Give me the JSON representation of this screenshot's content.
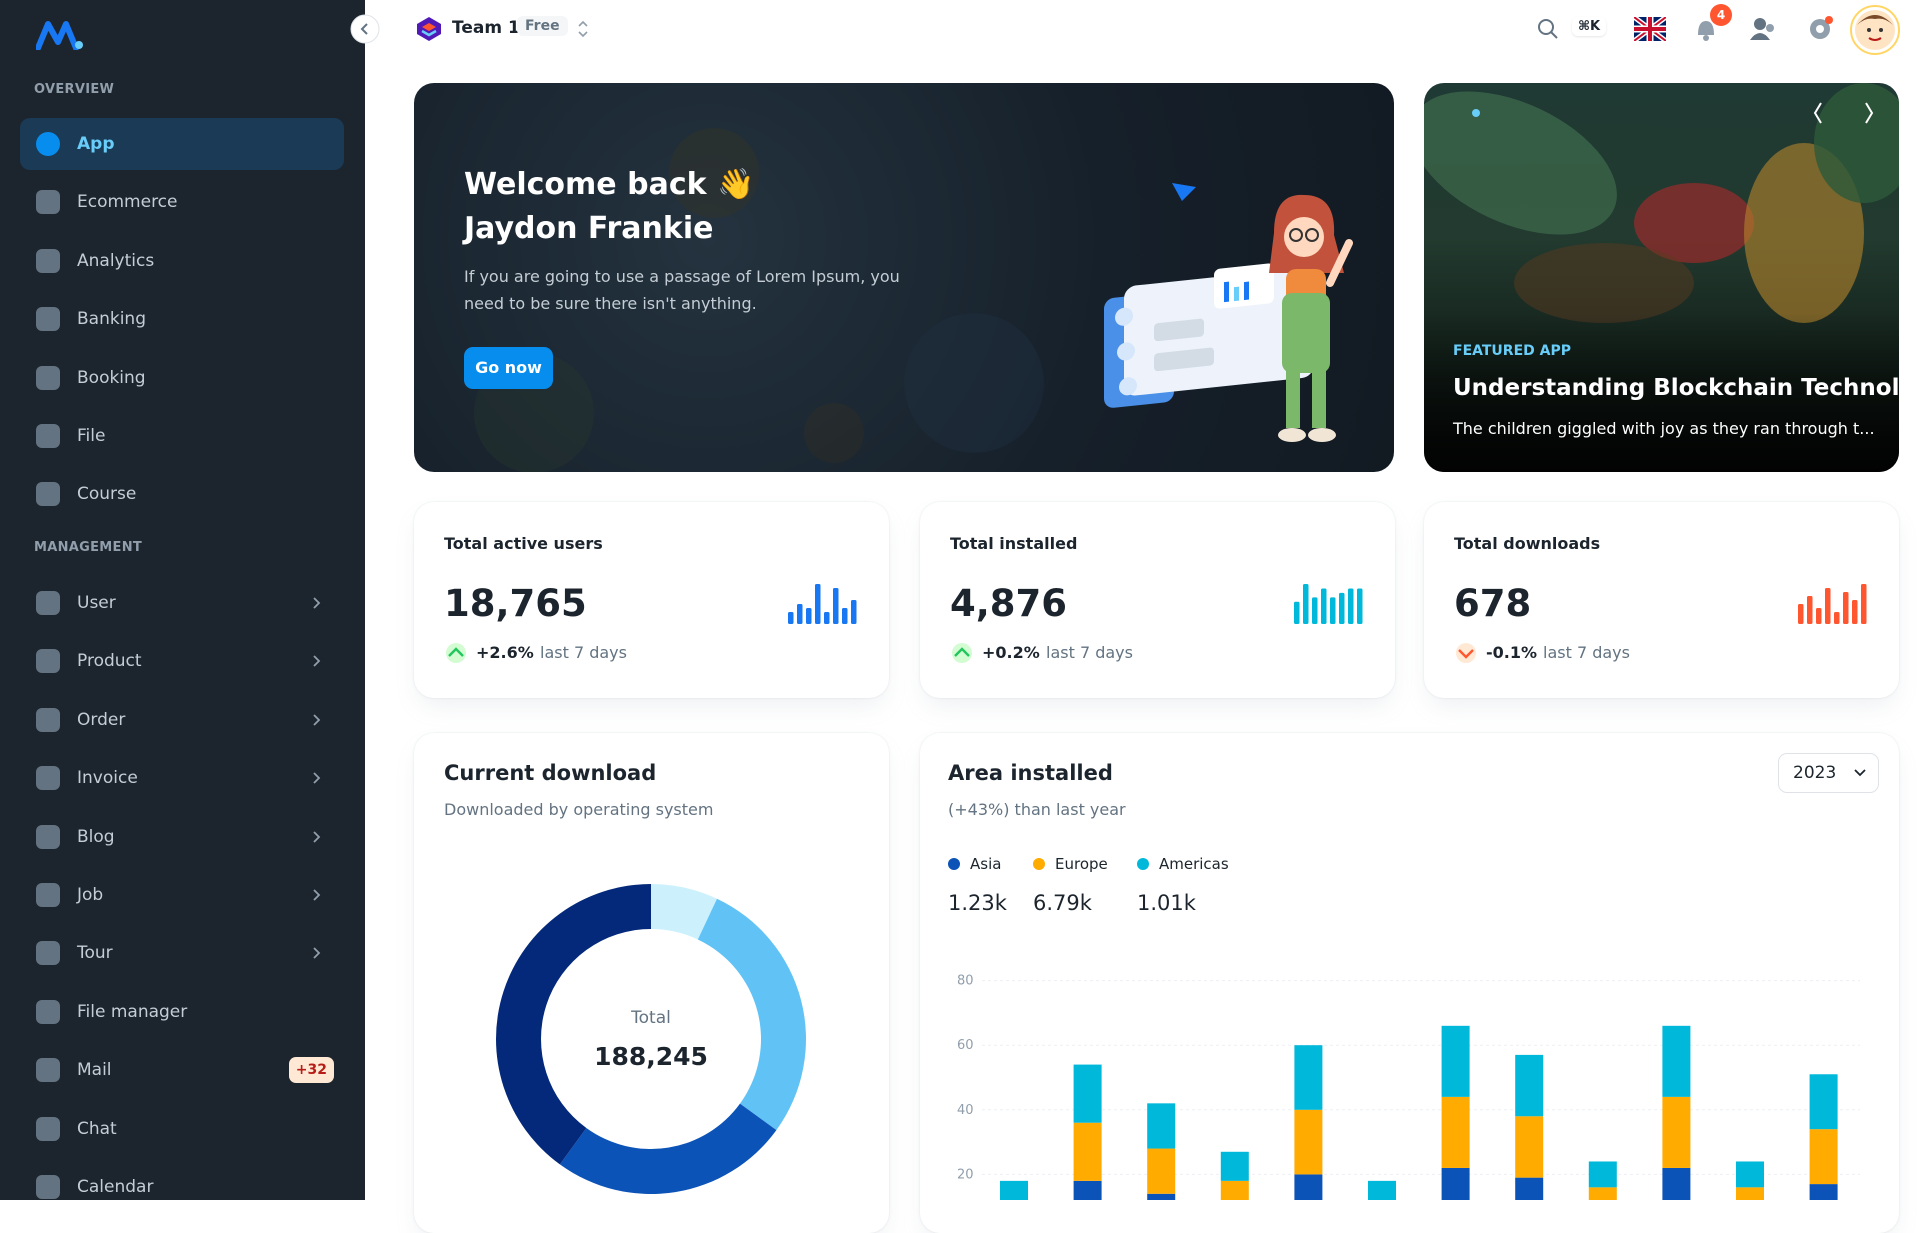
{
  "sidebar": {
    "sections": [
      {
        "title": "OVERVIEW",
        "items": [
          {
            "label": "App"
          },
          {
            "label": "Ecommerce"
          },
          {
            "label": "Analytics"
          },
          {
            "label": "Banking"
          },
          {
            "label": "Booking"
          },
          {
            "label": "File"
          },
          {
            "label": "Course"
          }
        ]
      },
      {
        "title": "MANAGEMENT",
        "items": [
          {
            "label": "User",
            "submenu": true
          },
          {
            "label": "Product",
            "submenu": true
          },
          {
            "label": "Order",
            "submenu": true
          },
          {
            "label": "Invoice",
            "submenu": true
          },
          {
            "label": "Blog",
            "submenu": true
          },
          {
            "label": "Job",
            "submenu": true
          },
          {
            "label": "Tour",
            "submenu": true
          },
          {
            "label": "File manager"
          },
          {
            "label": "Mail",
            "badge": "+32"
          },
          {
            "label": "Chat"
          },
          {
            "label": "Calendar"
          }
        ]
      }
    ]
  },
  "header": {
    "team": "Team 1",
    "plan": "Free",
    "shortcut": "⌘K",
    "notifications": 4
  },
  "welcome": {
    "title": "Welcome back 👋",
    "name": "Jaydon Frankie",
    "text": "If you are going to use a passage of Lorem Ipsum, you need to be sure there isn't anything.",
    "button": "Go now"
  },
  "featured": {
    "tag": "FEATURED APP",
    "title": "Understanding Blockchain Technolo...",
    "text": "The children giggled with joy as they ran through t..."
  },
  "stats": [
    {
      "title": "Total active users",
      "value": "18,765",
      "change": "+2.6%",
      "period": "last 7 days",
      "color": "#1877f2",
      "bars": [
        3,
        5,
        4,
        10,
        3,
        9,
        4,
        6
      ]
    },
    {
      "title": "Total installed",
      "value": "4,876",
      "change": "+0.2%",
      "period": "last 7 days",
      "color": "#00b8d9",
      "bars": [
        5,
        9,
        6,
        8,
        6,
        7,
        8,
        8
      ]
    },
    {
      "title": "Total downloads",
      "value": "678",
      "change": "-0.1%",
      "period": "last 7 days",
      "color": "#ff5630",
      "bars": [
        5,
        7,
        4,
        9,
        3,
        8,
        6,
        10
      ]
    }
  ],
  "current_download": {
    "title": "Current download",
    "subtitle": "Downloaded by operating system",
    "total_label": "Total",
    "total": "188,245",
    "chart": {
      "type": "donut",
      "values": [
        7,
        28,
        25,
        40
      ],
      "colors": [
        "#ccf1fd",
        "#61c3f5",
        "#0c53b7",
        "#04297a"
      ]
    }
  },
  "area_installed": {
    "title": "Area installed",
    "subtitle": "(+43%) than last year",
    "year": "2023",
    "chart": {
      "type": "bar",
      "stacked": true,
      "categories": [
        null,
        null,
        null,
        null,
        null,
        null,
        null,
        null,
        null,
        null,
        null,
        null
      ],
      "series": [
        {
          "name": "Asia",
          "total": "1.23k",
          "color": "#0c53b7",
          "values": [
            7,
            18,
            14,
            9,
            20,
            6,
            22,
            19,
            8,
            22,
            8,
            17
          ]
        },
        {
          "name": "Europe",
          "total": "6.79k",
          "color": "#ffab00",
          "values": [
            5,
            18,
            14,
            9,
            20,
            6,
            22,
            19,
            8,
            22,
            8,
            17
          ]
        },
        {
          "name": "Americas",
          "total": "1.01k",
          "color": "#00b8d9",
          "values": [
            6,
            18,
            14,
            9,
            20,
            6,
            22,
            19,
            8,
            22,
            8,
            17
          ]
        }
      ],
      "ylim": [
        0,
        80
      ],
      "yticks": [
        20,
        40,
        60,
        80
      ],
      "grid": true
    }
  }
}
